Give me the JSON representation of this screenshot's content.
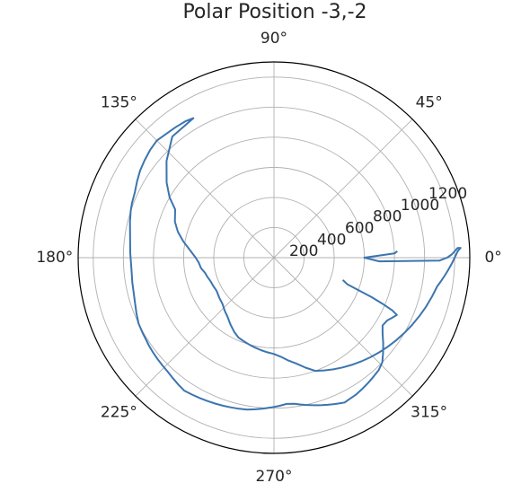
{
  "chart_data": {
    "type": "line",
    "projection": "polar",
    "title": "Polar Position -3,-2",
    "xlabel": "",
    "ylabel": "",
    "theta_unit": "degrees",
    "rlim": [
      0,
      1300
    ],
    "grid": true,
    "line_color": "#3b75af",
    "angular_ticks": [
      "0°",
      "45°",
      "90°",
      "135°",
      "180°",
      "225°",
      "270°",
      "315°"
    ],
    "radial_ticks": [
      "200",
      "400",
      "600",
      "800",
      "1000",
      "1200"
    ],
    "radial_tick_values": [
      200,
      400,
      600,
      800,
      1000,
      1200
    ],
    "series": [
      {
        "theta": [
          -18,
          -20,
          -21,
          -22,
          -23,
          -24,
          -25,
          -27,
          -29,
          -32,
          -35,
          -38,
          -41,
          -44,
          -47,
          -50,
          -53,
          -56,
          -59,
          -62,
          -64,
          -66,
          -68,
          -70,
          -72,
          -73,
          -74,
          -76,
          -78,
          -80,
          -82,
          -85,
          -88,
          -91,
          -94,
          -97,
          -100,
          -103,
          -106,
          -109,
          -112,
          -115,
          -118,
          -121,
          -124,
          -127,
          -130,
          -133,
          -136,
          -139,
          -142,
          -145,
          -147,
          -150,
          -154,
          -158,
          -162,
          -166,
          -170,
          -174,
          -178,
          -182,
          -186,
          -190,
          -194,
          -198,
          -201,
          -205,
          -209,
          -213,
          -217,
          -221,
          -225,
          -229,
          -233,
          -237,
          -240,
          -230,
          -222,
          -215,
          -210,
          -206,
          -200,
          -195,
          -190,
          -184,
          -180,
          -176,
          -172,
          -170,
          -168,
          -164,
          -160,
          -155,
          -150,
          -144,
          -138,
          -133,
          -128,
          -123,
          -118,
          -114,
          -110,
          -106,
          -102,
          -98,
          -94,
          -90,
          -86,
          -82,
          -78,
          -74,
          -70,
          -66,
          -62,
          -58,
          -54,
          -50,
          -46,
          -42,
          -38,
          -34,
          -30,
          -26,
          -22,
          -18,
          -14,
          -10,
          -8,
          -6,
          -4,
          -2,
          0,
          2,
          3,
          3,
          2,
          1,
          0,
          -1,
          -2,
          0,
          2,
          3
        ],
        "r": [
          480,
          520,
          600,
          700,
          780,
          860,
          900,
          880,
          860,
          850,
          880,
          920,
          960,
          1000,
          1020,
          1030,
          1040,
          1050,
          1060,
          1065,
          1070,
          1060,
          1050,
          1040,
          1030,
          1025,
          1020,
          1010,
          1000,
          990,
          980,
          975,
          985,
          995,
          1005,
          1015,
          1025,
          1030,
          1035,
          1040,
          1045,
          1050,
          1055,
          1060,
          1065,
          1055,
          1045,
          1035,
          1030,
          1025,
          1020,
          1015,
          1010,
          1005,
          1000,
          985,
          970,
          960,
          955,
          950,
          950,
          955,
          960,
          970,
          985,
          1000,
          1010,
          1020,
          1040,
          1060,
          1075,
          1090,
          1100,
          1090,
          1085,
          1080,
          1070,
          1050,
          960,
          870,
          800,
          730,
          700,
          660,
          610,
          550,
          520,
          500,
          490,
          480,
          470,
          460,
          450,
          445,
          440,
          450,
          460,
          480,
          500,
          530,
          560,
          580,
          590,
          600,
          610,
          620,
          630,
          640,
          660,
          690,
          720,
          760,
          800,
          820,
          840,
          860,
          880,
          900,
          920,
          940,
          960,
          980,
          1000,
          1020,
          1040,
          1060,
          1080,
          1100,
          1120,
          1140,
          1160,
          1180,
          1200,
          1220,
          1240,
          1220,
          1200,
          1180,
          1150,
          1100,
          700,
          600,
          800,
          820
        ],
        "name": ""
      }
    ]
  }
}
